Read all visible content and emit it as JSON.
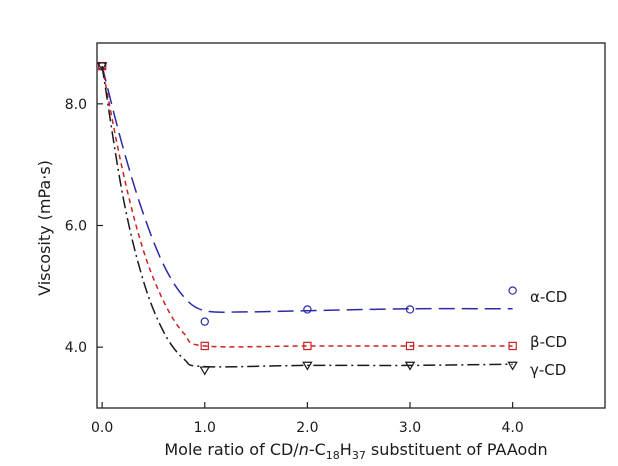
{
  "chart_data": {
    "type": "scatter",
    "xlabel": {
      "prefix": "Mole ratio of CD/",
      "italic": "n",
      "mid": "-C",
      "sub1": "18",
      "h": "H",
      "sub2": "37",
      "suffix": " substituent of PAAodn"
    },
    "ylabel": "Viscosity   (mPa·s)",
    "xlim": [
      -0.05,
      4.9
    ],
    "ylim": [
      3.0,
      9.0
    ],
    "x_ticks": [
      0.0,
      1.0,
      2.0,
      3.0,
      4.0
    ],
    "x_tick_labels": [
      "0.0",
      "1.0",
      "2.0",
      "3.0",
      "4.0"
    ],
    "y_ticks": [
      4.0,
      6.0,
      8.0
    ],
    "y_tick_labels": [
      "4.0",
      "6.0",
      "8.0"
    ],
    "grid": false,
    "series": [
      {
        "name": "α-CD",
        "marker": "circle",
        "color": "#2b2ba8",
        "dash": "long-dash",
        "x": [
          0.0,
          1.0,
          2.0,
          3.0,
          4.0
        ],
        "y": [
          8.62,
          4.42,
          4.62,
          4.62,
          4.93
        ],
        "curve": [
          [
            0.0,
            8.62
          ],
          [
            0.2,
            7.3
          ],
          [
            0.4,
            6.2
          ],
          [
            0.6,
            5.35
          ],
          [
            0.8,
            4.82
          ],
          [
            1.0,
            4.6
          ],
          [
            1.4,
            4.58
          ],
          [
            2.0,
            4.6
          ],
          [
            3.0,
            4.63
          ],
          [
            4.0,
            4.63
          ]
        ]
      },
      {
        "name": "β-CD",
        "marker": "square",
        "color": "#cc2222",
        "dash": "short-dash",
        "x": [
          0.0,
          1.0,
          2.0,
          3.0,
          4.0
        ],
        "y": [
          8.62,
          4.02,
          4.02,
          4.02,
          4.02
        ],
        "curve": [
          [
            0.0,
            8.62
          ],
          [
            0.2,
            6.9
          ],
          [
            0.4,
            5.6
          ],
          [
            0.6,
            4.75
          ],
          [
            0.8,
            4.22
          ],
          [
            1.0,
            4.02
          ],
          [
            2.0,
            4.02
          ],
          [
            3.0,
            4.02
          ],
          [
            4.0,
            4.02
          ]
        ]
      },
      {
        "name": "γ-CD",
        "marker": "triangle-down",
        "color": "#1a1a1a",
        "dash": "dash-dot",
        "x": [
          0.0,
          1.0,
          2.0,
          3.0,
          4.0
        ],
        "y": [
          8.62,
          3.62,
          3.7,
          3.7,
          3.7
        ],
        "curve": [
          [
            0.0,
            8.62
          ],
          [
            0.2,
            6.5
          ],
          [
            0.4,
            5.1
          ],
          [
            0.6,
            4.25
          ],
          [
            0.8,
            3.8
          ],
          [
            1.0,
            3.68
          ],
          [
            2.0,
            3.7
          ],
          [
            3.0,
            3.7
          ],
          [
            4.0,
            3.72
          ]
        ]
      }
    ]
  }
}
